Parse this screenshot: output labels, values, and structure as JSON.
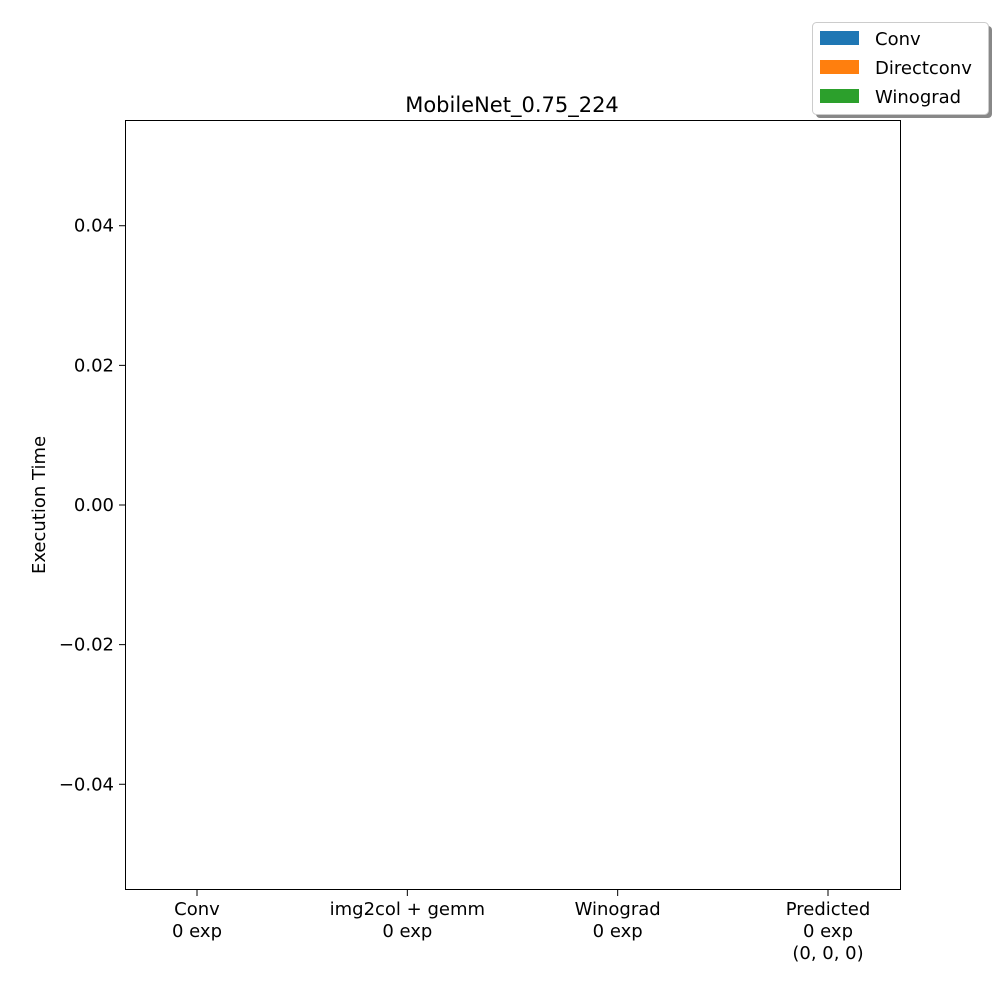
{
  "chart_data": {
    "type": "bar",
    "title": "MobileNet_0.75_224",
    "xlabel": "",
    "ylabel": "Execution Time",
    "ylim": [
      -0.055,
      0.055
    ],
    "yticks": [
      {
        "value": 0.04,
        "label": "0.04"
      },
      {
        "value": 0.02,
        "label": "0.02"
      },
      {
        "value": 0.0,
        "label": "0.00"
      },
      {
        "value": -0.02,
        "label": "−0.02"
      },
      {
        "value": -0.04,
        "label": "−0.04"
      }
    ],
    "categories": [
      [
        "Conv",
        "0 exp"
      ],
      [
        "img2col + gemm",
        "0 exp"
      ],
      [
        "Winograd",
        "0 exp"
      ],
      [
        "Predicted",
        "0 exp",
        "(0, 0, 0)"
      ]
    ],
    "series": [
      {
        "name": "Conv",
        "color": "#1f77b4",
        "values": [
          0,
          0,
          0,
          0
        ]
      },
      {
        "name": "Directconv",
        "color": "#ff7f0e",
        "values": [
          0,
          0,
          0,
          0
        ]
      },
      {
        "name": "Winograd",
        "color": "#2ca02c",
        "values": [
          0,
          0,
          0,
          0
        ]
      }
    ],
    "grid": false,
    "legend_position": "top-right"
  }
}
